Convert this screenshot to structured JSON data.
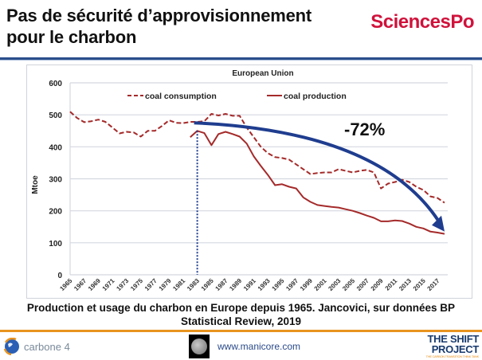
{
  "slide": {
    "title_line1": "Pas de sécurité d’approvisionnement",
    "title_line2": "pour le charbon",
    "brand": "SciencesPo",
    "caption_line1": "Production et usage du charbon en Europe depuis 1965. Jancovici, sur données BP",
    "caption_line2": "Statistical Review, 2019",
    "footer": {
      "left_logo_text": "carbone 4",
      "middle_url": "www.manicore.com",
      "right_logo_line1": "THE SHIFT",
      "right_logo_line2": "PROJECT",
      "right_logo_tagline": "THE CARBON TRANSITION THINK TANK"
    }
  },
  "colors": {
    "series": "#a52a2a",
    "arrow": "#1f3d8f",
    "marker_line": "#1f3d8f",
    "grid": "#d4d8e0",
    "brand": "#d0123b",
    "footer_rule": "#e8931f",
    "header_rule": "#2b4f8c"
  },
  "chart_data": {
    "type": "line",
    "title": "European Union",
    "xlabel": "",
    "ylabel": "Mtoe",
    "ylim": [
      0,
      600
    ],
    "yticks": [
      0,
      100,
      200,
      300,
      400,
      500,
      600
    ],
    "grid": true,
    "legend_position": "top",
    "x": [
      1965,
      1966,
      1967,
      1968,
      1969,
      1970,
      1971,
      1972,
      1973,
      1974,
      1975,
      1976,
      1977,
      1978,
      1979,
      1980,
      1981,
      1982,
      1983,
      1984,
      1985,
      1986,
      1987,
      1988,
      1989,
      1990,
      1991,
      1992,
      1993,
      1994,
      1995,
      1996,
      1997,
      1998,
      1999,
      2000,
      2001,
      2002,
      2003,
      2004,
      2005,
      2006,
      2007,
      2008,
      2009,
      2010,
      2011,
      2012,
      2013,
      2014,
      2015,
      2016,
      2017,
      2018
    ],
    "xtick_labels": [
      "1965",
      "1967",
      "1969",
      "1971",
      "1973",
      "1975",
      "1977",
      "1979",
      "1981",
      "1983",
      "1985",
      "1987",
      "1989",
      "1991",
      "1993",
      "1995",
      "1997",
      "1999",
      "2001",
      "2003",
      "2005",
      "2007",
      "2009",
      "2011",
      "2013",
      "2015",
      "2017"
    ],
    "series": [
      {
        "name": "coal consumption",
        "style": "dashed",
        "values": [
          510,
          490,
          477,
          480,
          485,
          478,
          460,
          442,
          447,
          445,
          432,
          450,
          450,
          465,
          483,
          475,
          474,
          478,
          478,
          480,
          503,
          498,
          503,
          497,
          497,
          460,
          430,
          400,
          380,
          368,
          365,
          360,
          345,
          330,
          315,
          318,
          320,
          320,
          330,
          325,
          320,
          325,
          328,
          320,
          270,
          285,
          290,
          297,
          290,
          275,
          265,
          245,
          240,
          225
        ]
      },
      {
        "name": "coal production",
        "style": "solid",
        "values": [
          null,
          null,
          null,
          null,
          null,
          null,
          null,
          null,
          null,
          null,
          null,
          null,
          null,
          null,
          null,
          null,
          null,
          430,
          450,
          443,
          405,
          440,
          447,
          440,
          432,
          410,
          370,
          340,
          312,
          280,
          283,
          275,
          270,
          242,
          228,
          218,
          215,
          212,
          210,
          205,
          200,
          193,
          185,
          178,
          167,
          167,
          170,
          168,
          160,
          150,
          145,
          135,
          132,
          128
        ]
      }
    ],
    "annotations": [
      {
        "type": "text",
        "text": "-72%",
        "x": 2005,
        "y": 447
      },
      {
        "type": "vertical-dotted-line",
        "x": 1983
      },
      {
        "type": "curved-arrow",
        "from": [
          1983,
          475
        ],
        "to": [
          2018,
          130
        ]
      }
    ]
  }
}
